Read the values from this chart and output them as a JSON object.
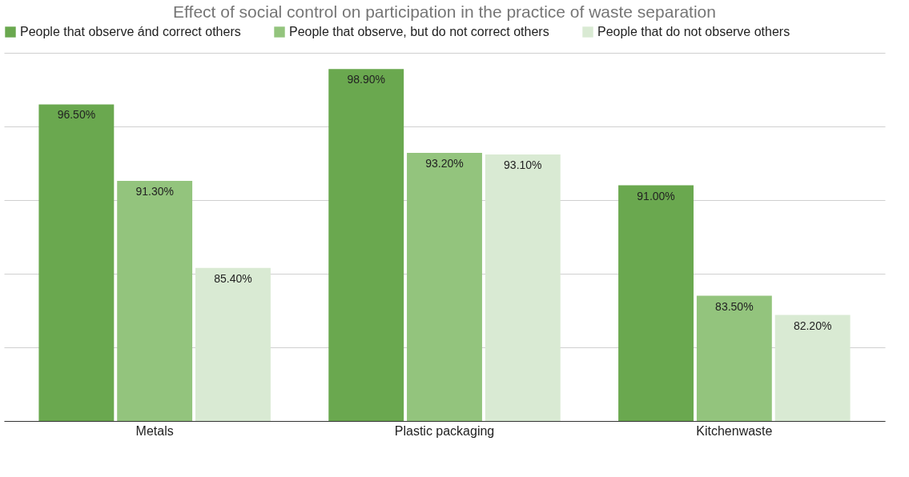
{
  "chart_data": {
    "type": "bar",
    "title": "Effect of social control on participation in the practice of waste separation",
    "categories": [
      "Metals",
      "Plastic packaging",
      "Kitchenwaste"
    ],
    "series": [
      {
        "name": "People that observe ánd correct others",
        "color": "#6aa84f",
        "values": [
          96.5,
          98.9,
          91.0
        ],
        "value_labels": [
          "96.50%",
          "98.90%",
          "91.00%"
        ]
      },
      {
        "name": "People that observe, but do not correct others",
        "color": "#93c47d",
        "values": [
          91.3,
          93.2,
          83.5
        ],
        "value_labels": [
          "91.30%",
          "93.20%",
          "83.50%"
        ]
      },
      {
        "name": "People that do not observe others",
        "color": "#d9ead3",
        "values": [
          85.4,
          93.1,
          82.2
        ],
        "value_labels": [
          "85.40%",
          "93.10%",
          "82.20%"
        ]
      }
    ],
    "ylim": [
      75,
      100
    ],
    "yticks": [
      {
        "value": 75,
        "label": null
      },
      {
        "value": 80,
        "label": null
      },
      {
        "value": 85,
        "label": null
      },
      {
        "value": 90,
        "label": null
      },
      {
        "value": 95,
        "label": null
      },
      {
        "value": 100,
        "label": null
      }
    ],
    "grid": true,
    "legend": "top",
    "tick_labels": "x"
  }
}
